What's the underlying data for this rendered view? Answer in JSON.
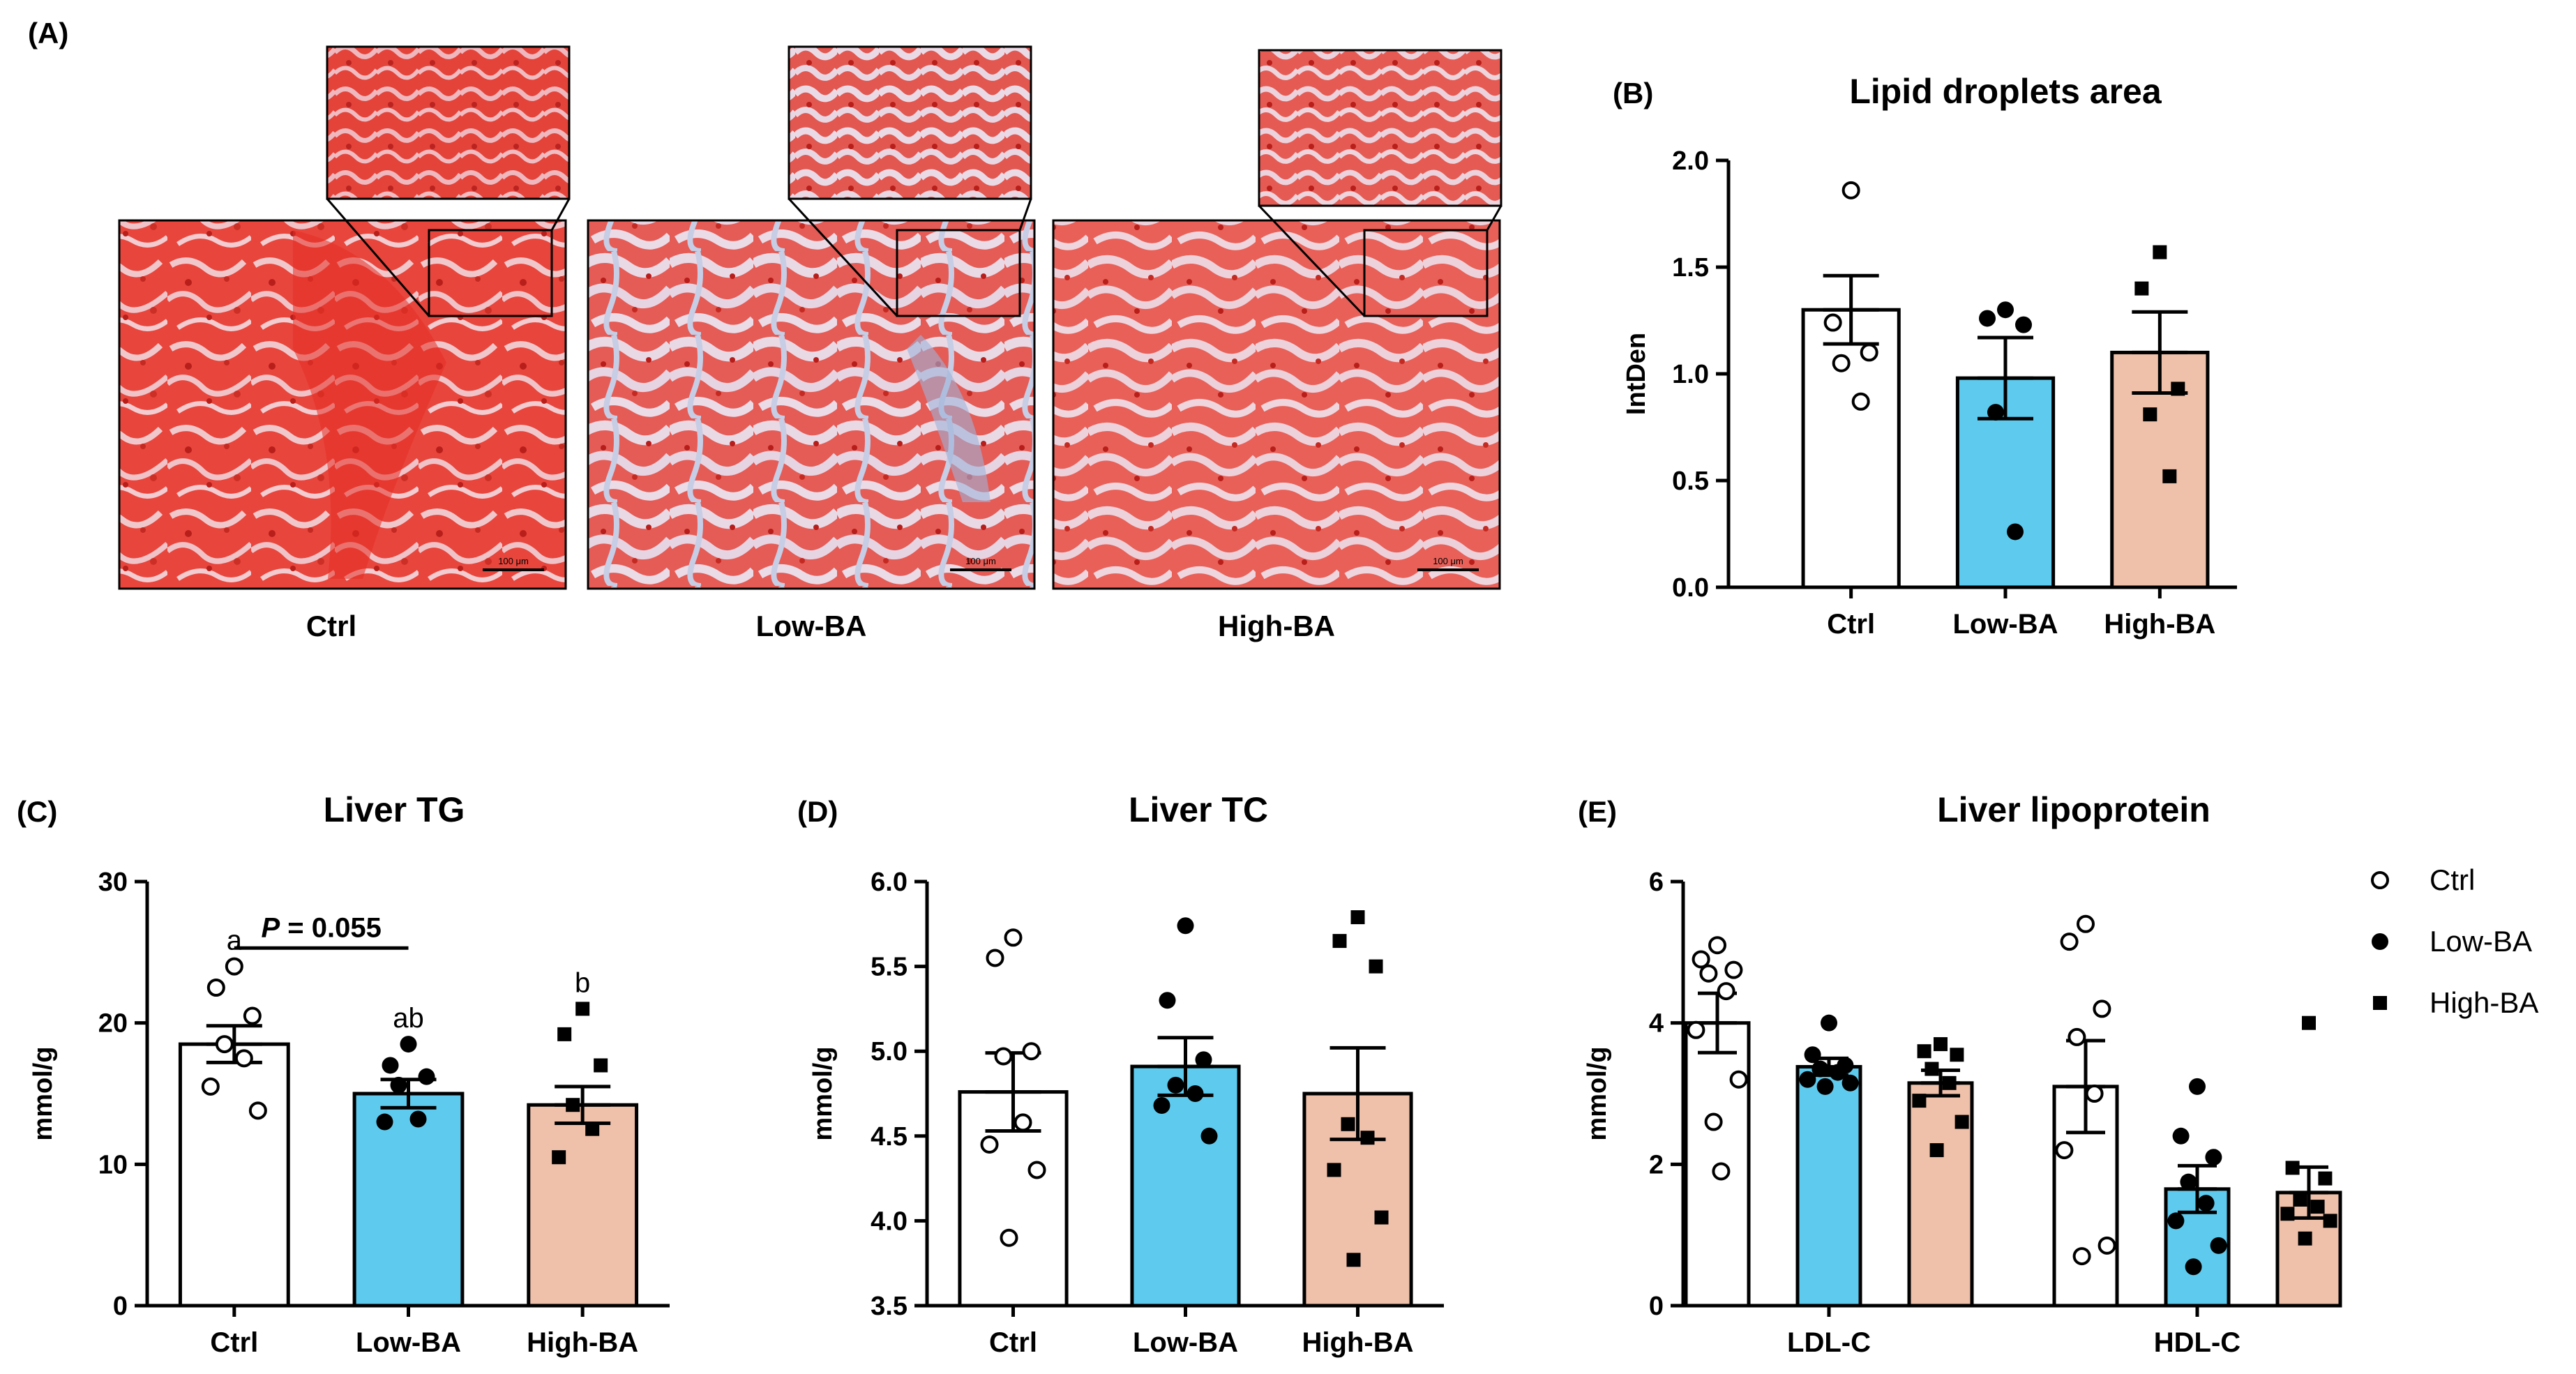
{
  "colors": {
    "ctrl": "#ffffff",
    "low": "#5ecbee",
    "high": "#efc1aa",
    "stroke": "#000000",
    "stain_red": "#e63a32",
    "stain_pale": "#e9d7e4",
    "stain_blue": "#a8b9d6"
  },
  "panel_a": {
    "label": "(A)",
    "groups": [
      "Ctrl",
      "Low-BA",
      "High-BA"
    ],
    "scale_bar": "100 μm"
  },
  "chart_data": [
    {
      "id": "B",
      "type": "bar",
      "panel_label": "(B)",
      "title": "Lipid droplets area",
      "ylabel": "IntDen",
      "xlabel": "",
      "ylim": [
        0,
        2.0
      ],
      "yticks": [
        0.0,
        0.5,
        1.0,
        1.5,
        2.0
      ],
      "ytick_labels": [
        "0.0",
        "0.5",
        "1.0",
        "1.5",
        "2.0"
      ],
      "categories": [
        "Ctrl",
        "Low-BA",
        "High-BA"
      ],
      "values": [
        1.3,
        0.98,
        1.1
      ],
      "sem": [
        0.16,
        0.19,
        0.19
      ],
      "points": [
        [
          1.86,
          1.24,
          1.1,
          1.05,
          0.87
        ],
        [
          1.3,
          1.26,
          1.23,
          0.82,
          0.26
        ],
        [
          1.57,
          1.4,
          0.93,
          0.81,
          0.52
        ]
      ],
      "markers": [
        "circle-open",
        "circle-filled",
        "square"
      ]
    },
    {
      "id": "C",
      "type": "bar",
      "panel_label": "(C)",
      "title": "Liver TG",
      "ylabel": "mmol/g",
      "xlabel": "",
      "ylim": [
        0,
        30
      ],
      "yticks": [
        0,
        10,
        20,
        30
      ],
      "ytick_labels": [
        "0",
        "10",
        "20",
        "30"
      ],
      "categories": [
        "Ctrl",
        "Low-BA",
        "High-BA"
      ],
      "values": [
        18.5,
        15.0,
        14.2
      ],
      "sem": [
        1.3,
        1.0,
        1.3
      ],
      "letters": [
        "a",
        "ab",
        "b"
      ],
      "points": [
        [
          24.0,
          22.5,
          20.5,
          18.5,
          17.5,
          15.5,
          13.8
        ],
        [
          18.5,
          17.0,
          16.2,
          15.6,
          13.2,
          13.0
        ],
        [
          21.0,
          19.2,
          17.0,
          14.2,
          12.5,
          10.5
        ]
      ],
      "markers": [
        "circle-open",
        "circle-filled",
        "square"
      ],
      "annotation": {
        "p_letter": "P",
        "p_rest": " = 0.055"
      }
    },
    {
      "id": "D",
      "type": "bar",
      "panel_label": "(D)",
      "title": "Liver TC",
      "ylabel": "mmol/g",
      "xlabel": "",
      "ylim": [
        3.5,
        6.0
      ],
      "yticks": [
        3.5,
        4.0,
        4.5,
        5.0,
        5.5,
        6.0
      ],
      "ytick_labels": [
        "3.5",
        "4.0",
        "4.5",
        "5.0",
        "5.5",
        "6.0"
      ],
      "categories": [
        "Ctrl",
        "Low-BA",
        "High-BA"
      ],
      "values": [
        4.76,
        4.91,
        4.75
      ],
      "sem": [
        0.23,
        0.17,
        0.27
      ],
      "points": [
        [
          5.67,
          5.55,
          5.0,
          4.97,
          4.58,
          4.45,
          4.3,
          3.9
        ],
        [
          5.74,
          5.3,
          4.95,
          4.8,
          4.75,
          4.68,
          4.5
        ],
        [
          5.79,
          5.65,
          5.5,
          4.57,
          4.49,
          4.3,
          4.02,
          3.77
        ]
      ],
      "markers": [
        "circle-open",
        "circle-filled",
        "square"
      ]
    },
    {
      "id": "E",
      "type": "bar",
      "panel_label": "(E)",
      "title": "Liver lipoprotein",
      "ylabel": "mmol/g",
      "xlabel": "",
      "ylim": [
        0,
        6
      ],
      "yticks": [
        0,
        2,
        4,
        6
      ],
      "ytick_labels": [
        "0",
        "2",
        "4",
        "6"
      ],
      "categories": [
        "LDL-C",
        "HDL-C"
      ],
      "legend": [
        "Ctrl",
        "Low-BA",
        "High-BA"
      ],
      "legend_position": "top-right",
      "series": [
        {
          "name": "Ctrl",
          "values": [
            4.0,
            3.1
          ],
          "sem": [
            0.42,
            0.65
          ],
          "points": [
            [
              5.1,
              4.9,
              4.75,
              4.7,
              4.45,
              3.9,
              3.2,
              2.6,
              1.9
            ],
            [
              5.4,
              5.15,
              4.2,
              3.8,
              3.0,
              2.2,
              0.85,
              0.7
            ]
          ]
        },
        {
          "name": "Low-BA",
          "values": [
            3.38,
            1.65
          ],
          "sem": [
            0.12,
            0.33
          ],
          "points": [
            [
              4.0,
              3.55,
              3.4,
              3.35,
              3.3,
              3.2,
              3.15,
              3.1
            ],
            [
              3.1,
              2.4,
              2.1,
              1.75,
              1.45,
              1.2,
              0.85,
              0.55
            ]
          ]
        },
        {
          "name": "High-BA",
          "values": [
            3.15,
            1.6
          ],
          "sem": [
            0.18,
            0.36
          ],
          "points": [
            [
              3.7,
              3.6,
              3.55,
              3.35,
              3.15,
              2.9,
              2.6,
              2.2
            ],
            [
              4.0,
              1.95,
              1.8,
              1.5,
              1.4,
              1.3,
              1.2,
              0.95
            ]
          ]
        }
      ],
      "markers": [
        "circle-open",
        "circle-filled",
        "square"
      ]
    }
  ]
}
